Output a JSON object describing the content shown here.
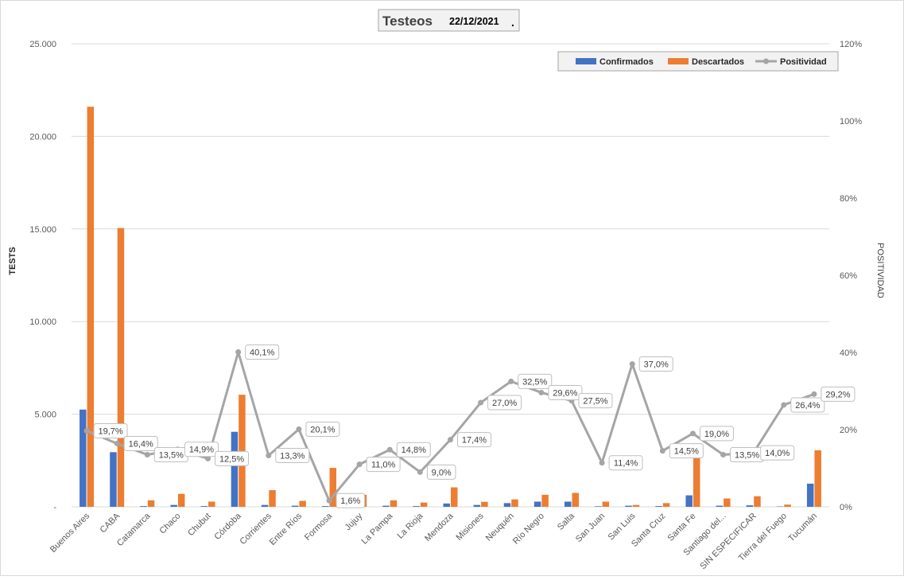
{
  "title_box": {
    "title": "Testeos",
    "date": "22/12/2021",
    "dot": "."
  },
  "legend": {
    "confirmed": "Confirmados",
    "discarded": "Descartados",
    "positivity": "Positividad"
  },
  "axes": {
    "left_label": "TESTS",
    "right_label": "POSITIVIDAD",
    "left_ticks": [
      "-",
      "5.000",
      "10.000",
      "15.000",
      "20.000",
      "25.000"
    ],
    "right_ticks": [
      "0%",
      "20%",
      "40%",
      "60%",
      "80%",
      "100%",
      "120%"
    ]
  },
  "colors": {
    "confirmed": "#4472C4",
    "discarded": "#ED7D31",
    "positivity": "#A5A5A5",
    "grid": "#D9D9D9"
  },
  "chart_data": {
    "type": "bar",
    "title": "Testeos 22/12/2021",
    "xlabel": "",
    "ylabel": "TESTS",
    "y2label": "POSITIVIDAD",
    "ylim": [
      0,
      25000
    ],
    "y2lim": [
      0,
      120
    ],
    "grid": true,
    "legend_position": "top-right",
    "categories": [
      "Buenos Aires",
      "CABA",
      "Catamarca",
      "Chaco",
      "Chubut",
      "Córdoba",
      "Corrientes",
      "Entre Ríos",
      "Formosa",
      "Jujuy",
      "La Pampa",
      "La Rioja",
      "Mendoza",
      "Misiones",
      "Neuquén",
      "Río Negro",
      "Salta",
      "San Juan",
      "San Luis",
      "Santa Cruz",
      "Santa Fe",
      "Santiago del...",
      "SIN ESPECIFICAR",
      "Tierra del Fuego",
      "Tucumán"
    ],
    "series": [
      {
        "name": "Confirmados",
        "kind": "bar",
        "axis": "left",
        "values": [
          5250,
          2950,
          40,
          100,
          40,
          4050,
          100,
          60,
          40,
          40,
          60,
          40,
          180,
          100,
          200,
          280,
          280,
          30,
          60,
          40,
          620,
          60,
          80,
          20,
          1250
        ]
      },
      {
        "name": "Descartados",
        "kind": "bar",
        "axis": "left",
        "values": [
          21600,
          15050,
          350,
          700,
          280,
          6050,
          900,
          320,
          2100,
          650,
          350,
          230,
          1050,
          270,
          400,
          650,
          750,
          280,
          100,
          200,
          2700,
          450,
          570,
          120,
          3050
        ]
      },
      {
        "name": "Positividad",
        "kind": "line",
        "axis": "right",
        "values": [
          19.7,
          16.4,
          13.5,
          14.9,
          12.5,
          40.1,
          13.3,
          20.1,
          1.6,
          11.0,
          14.8,
          9.0,
          17.4,
          27.0,
          32.5,
          29.6,
          27.5,
          11.4,
          37.0,
          14.5,
          19.0,
          13.5,
          14.0,
          26.4,
          29.2
        ],
        "labels": [
          "19,7%",
          "16,4%",
          "13,5%",
          "14,9%",
          "12,5%",
          "40,1%",
          "13,3%",
          "20,1%",
          "1,6%",
          "11,0%",
          "14,8%",
          "9,0%",
          "17,4%",
          "27,0%",
          "32,5%",
          "29,6%",
          "27,5%",
          "11,4%",
          "37,0%",
          "14,5%",
          "19,0%",
          "13,5%",
          "14,0%",
          "26,4%",
          "29,2%"
        ]
      }
    ]
  }
}
